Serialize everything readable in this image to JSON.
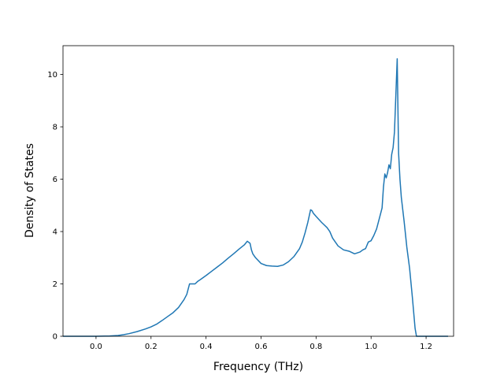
{
  "chart_data": {
    "type": "line",
    "title": "",
    "xlabel": "Frequency (THz)",
    "ylabel": "Density of States",
    "xlim": [
      -0.12,
      1.3
    ],
    "ylim": [
      0,
      11.1
    ],
    "xticks": [
      0.0,
      0.2,
      0.4,
      0.6,
      0.8,
      1.0,
      1.2
    ],
    "xtick_labels": [
      "0.0",
      "0.2",
      "0.4",
      "0.6",
      "0.8",
      "1.0",
      "1.2"
    ],
    "yticks": [
      0,
      2,
      4,
      6,
      8,
      10
    ],
    "ytick_labels": [
      "0",
      "2",
      "4",
      "6",
      "8",
      "10"
    ],
    "grid": false,
    "legend": "none",
    "series": [
      {
        "color": "#1f77b4",
        "x": [
          -0.12,
          -0.05,
          0.0,
          0.05,
          0.08,
          0.1,
          0.12,
          0.15,
          0.18,
          0.2,
          0.22,
          0.24,
          0.26,
          0.28,
          0.3,
          0.32,
          0.33,
          0.34,
          0.35,
          0.36,
          0.37,
          0.38,
          0.4,
          0.42,
          0.44,
          0.46,
          0.48,
          0.5,
          0.52,
          0.54,
          0.55,
          0.56,
          0.565,
          0.57,
          0.58,
          0.6,
          0.62,
          0.64,
          0.66,
          0.68,
          0.7,
          0.72,
          0.74,
          0.75,
          0.76,
          0.77,
          0.78,
          0.785,
          0.79,
          0.8,
          0.82,
          0.84,
          0.85,
          0.86,
          0.87,
          0.88,
          0.9,
          0.92,
          0.94,
          0.96,
          0.97,
          0.98,
          0.99,
          1.0,
          1.01,
          1.02,
          1.03,
          1.04,
          1.045,
          1.05,
          1.055,
          1.06,
          1.065,
          1.07,
          1.075,
          1.08,
          1.085,
          1.09,
          1.095,
          1.1,
          1.105,
          1.11,
          1.12,
          1.13,
          1.14,
          1.15,
          1.16,
          1.165,
          1.17,
          1.2,
          1.25,
          1.28
        ],
        "y": [
          0.0,
          0.0,
          0.0,
          0.01,
          0.03,
          0.06,
          0.1,
          0.18,
          0.28,
          0.36,
          0.46,
          0.6,
          0.75,
          0.9,
          1.1,
          1.4,
          1.6,
          2.0,
          2.0,
          2.0,
          2.1,
          2.17,
          2.32,
          2.48,
          2.64,
          2.8,
          2.98,
          3.15,
          3.33,
          3.5,
          3.63,
          3.55,
          3.3,
          3.15,
          3.0,
          2.78,
          2.7,
          2.68,
          2.67,
          2.72,
          2.85,
          3.05,
          3.35,
          3.6,
          3.95,
          4.35,
          4.83,
          4.8,
          4.7,
          4.58,
          4.35,
          4.15,
          4.0,
          3.75,
          3.6,
          3.45,
          3.3,
          3.25,
          3.15,
          3.22,
          3.3,
          3.35,
          3.6,
          3.65,
          3.85,
          4.1,
          4.5,
          4.9,
          5.7,
          6.2,
          6.05,
          6.25,
          6.55,
          6.4,
          6.95,
          7.2,
          7.8,
          9.2,
          10.6,
          7.0,
          6.0,
          5.3,
          4.4,
          3.4,
          2.6,
          1.5,
          0.3,
          0.0,
          0.0,
          0.0,
          0.0,
          0.0
        ]
      }
    ]
  }
}
